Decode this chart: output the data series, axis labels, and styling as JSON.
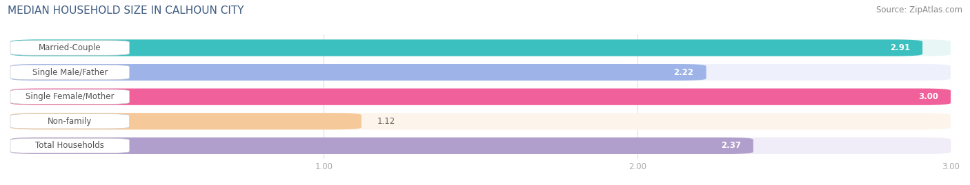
{
  "title": "MEDIAN HOUSEHOLD SIZE IN CALHOUN CITY",
  "source": "Source: ZipAtlas.com",
  "categories": [
    "Married-Couple",
    "Single Male/Father",
    "Single Female/Mother",
    "Non-family",
    "Total Households"
  ],
  "values": [
    2.91,
    2.22,
    3.0,
    1.12,
    2.37
  ],
  "bar_colors": [
    "#3bbfbf",
    "#9eb4e8",
    "#f0609a",
    "#f5c99a",
    "#b09fcc"
  ],
  "bar_bg_colors": [
    "#e8f6f6",
    "#eef1fb",
    "#fce8f0",
    "#fdf4ec",
    "#f0ecf8"
  ],
  "xlim_min": 0.0,
  "xlim_max": 3.0,
  "xticks": [
    1.0,
    2.0,
    3.0
  ],
  "value_fontsize": 8.5,
  "label_fontsize": 8.5,
  "title_fontsize": 11,
  "source_fontsize": 8.5,
  "bar_height": 0.68,
  "title_color": "#3d5a80",
  "source_color": "#888888",
  "bg_color": "#ffffff",
  "grid_color": "#dddddd",
  "tick_color": "#aaaaaa"
}
